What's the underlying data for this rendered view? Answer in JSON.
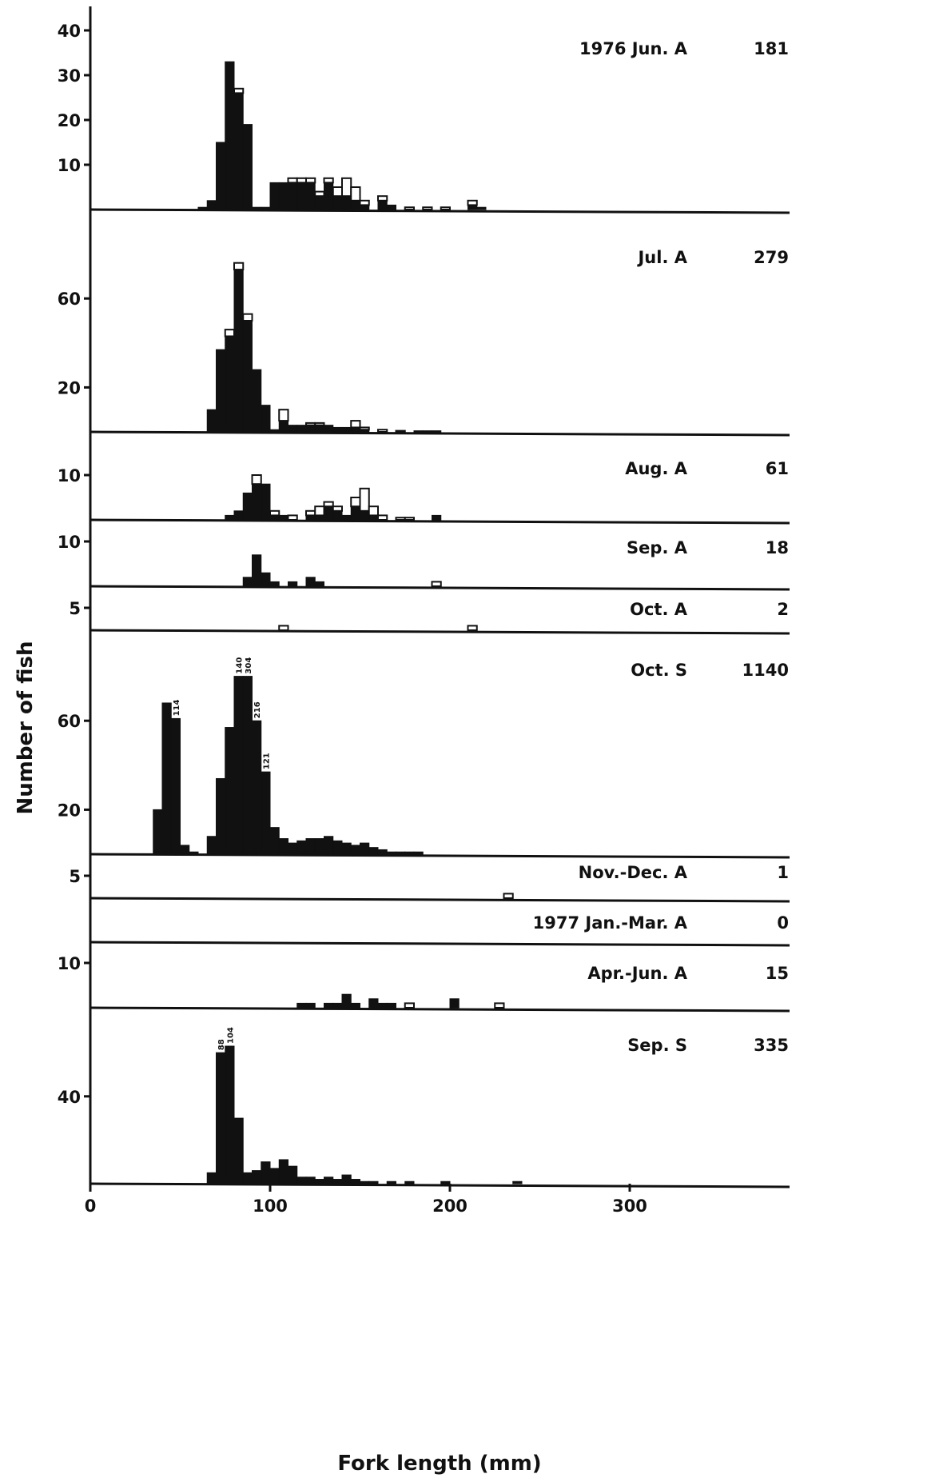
{
  "chart_data": {
    "type": "bar",
    "description_kind": "stacked length-frequency histograms",
    "xlabel": "Fork length (mm)",
    "ylabel": "Number of fish",
    "xlim": [
      0,
      390
    ],
    "xticks": [
      0,
      100,
      200,
      300
    ],
    "bin_width_mm": 5,
    "colors": {
      "filled": "#111111",
      "open": "#ffffff",
      "axis": "#111111"
    },
    "panels": [
      {
        "label": "1976 Jun. A",
        "count": "181",
        "yticks": [
          10,
          20,
          30,
          40
        ],
        "bins": [
          {
            "x": 60,
            "filled": 0.5,
            "total": 0.5
          },
          {
            "x": 65,
            "filled": 2,
            "total": 2
          },
          {
            "x": 70,
            "filled": 15,
            "total": 15
          },
          {
            "x": 75,
            "filled": 33,
            "total": 33
          },
          {
            "x": 80,
            "filled": 26,
            "total": 27
          },
          {
            "x": 85,
            "filled": 19,
            "total": 19
          },
          {
            "x": 90,
            "filled": 0.5,
            "total": 0.5
          },
          {
            "x": 95,
            "filled": 0.5,
            "total": 0.5
          },
          {
            "x": 100,
            "filled": 6,
            "total": 6
          },
          {
            "x": 105,
            "filled": 6,
            "total": 6
          },
          {
            "x": 110,
            "filled": 6,
            "total": 7
          },
          {
            "x": 115,
            "filled": 6,
            "total": 7
          },
          {
            "x": 120,
            "filled": 6,
            "total": 7
          },
          {
            "x": 125,
            "filled": 3,
            "total": 4
          },
          {
            "x": 130,
            "filled": 6,
            "total": 7
          },
          {
            "x": 135,
            "filled": 3,
            "total": 5
          },
          {
            "x": 140,
            "filled": 3,
            "total": 7
          },
          {
            "x": 145,
            "filled": 2,
            "total": 5
          },
          {
            "x": 150,
            "filled": 1,
            "total": 2
          },
          {
            "x": 155,
            "filled": 0,
            "total": 0
          },
          {
            "x": 160,
            "filled": 2,
            "total": 3
          },
          {
            "x": 165,
            "filled": 1,
            "total": 1
          },
          {
            "x": 175,
            "filled": 0,
            "total": 0.5
          },
          {
            "x": 185,
            "filled": 0,
            "total": 0.5
          },
          {
            "x": 195,
            "filled": 0,
            "total": 0.5
          },
          {
            "x": 210,
            "filled": 1,
            "total": 2
          },
          {
            "x": 215,
            "filled": 0.5,
            "total": 0.5
          }
        ]
      },
      {
        "label": "Jul. A",
        "count": "279",
        "yticks": [
          20,
          60
        ],
        "bins": [
          {
            "x": 65,
            "filled": 10,
            "total": 10
          },
          {
            "x": 70,
            "filled": 37,
            "total": 37
          },
          {
            "x": 75,
            "filled": 43,
            "total": 46
          },
          {
            "x": 80,
            "filled": 73,
            "total": 76
          },
          {
            "x": 85,
            "filled": 50,
            "total": 53
          },
          {
            "x": 90,
            "filled": 28,
            "total": 28
          },
          {
            "x": 95,
            "filled": 12,
            "total": 12
          },
          {
            "x": 100,
            "filled": 1,
            "total": 1
          },
          {
            "x": 105,
            "filled": 5,
            "total": 10
          },
          {
            "x": 110,
            "filled": 3,
            "total": 3
          },
          {
            "x": 115,
            "filled": 3,
            "total": 3
          },
          {
            "x": 120,
            "filled": 3,
            "total": 4
          },
          {
            "x": 125,
            "filled": 3,
            "total": 4
          },
          {
            "x": 130,
            "filled": 3,
            "total": 3
          },
          {
            "x": 135,
            "filled": 2,
            "total": 2
          },
          {
            "x": 140,
            "filled": 2,
            "total": 2
          },
          {
            "x": 145,
            "filled": 2,
            "total": 5
          },
          {
            "x": 150,
            "filled": 1,
            "total": 2
          },
          {
            "x": 155,
            "filled": 0,
            "total": 0
          },
          {
            "x": 160,
            "filled": 0,
            "total": 1
          },
          {
            "x": 170,
            "filled": 0,
            "total": 0.5
          },
          {
            "x": 180,
            "filled": 0.5,
            "total": 0.5
          },
          {
            "x": 185,
            "filled": 0.5,
            "total": 0.5
          },
          {
            "x": 190,
            "filled": 0.5,
            "total": 0.5
          }
        ]
      },
      {
        "label": "Aug. A",
        "count": "61",
        "yticks": [
          10
        ],
        "bins": [
          {
            "x": 75,
            "filled": 1,
            "total": 1
          },
          {
            "x": 80,
            "filled": 2,
            "total": 2
          },
          {
            "x": 85,
            "filled": 6,
            "total": 6
          },
          {
            "x": 90,
            "filled": 8,
            "total": 10
          },
          {
            "x": 95,
            "filled": 8,
            "total": 8
          },
          {
            "x": 100,
            "filled": 1,
            "total": 2
          },
          {
            "x": 105,
            "filled": 1,
            "total": 1
          },
          {
            "x": 110,
            "filled": 0,
            "total": 1
          },
          {
            "x": 115,
            "filled": 0,
            "total": 0
          },
          {
            "x": 120,
            "filled": 1,
            "total": 2
          },
          {
            "x": 125,
            "filled": 1,
            "total": 3
          },
          {
            "x": 130,
            "filled": 3,
            "total": 4
          },
          {
            "x": 135,
            "filled": 2,
            "total": 3
          },
          {
            "x": 140,
            "filled": 1,
            "total": 1
          },
          {
            "x": 145,
            "filled": 3,
            "total": 5
          },
          {
            "x": 150,
            "filled": 2,
            "total": 7
          },
          {
            "x": 155,
            "filled": 1,
            "total": 3
          },
          {
            "x": 160,
            "filled": 0,
            "total": 1
          },
          {
            "x": 170,
            "filled": 0,
            "total": 0.5
          },
          {
            "x": 175,
            "filled": 0,
            "total": 0.5
          },
          {
            "x": 190,
            "filled": 1,
            "total": 1
          }
        ]
      },
      {
        "label": "Sep. A",
        "count": "18",
        "yticks": [
          10
        ],
        "bins": [
          {
            "x": 85,
            "filled": 2,
            "total": 2
          },
          {
            "x": 90,
            "filled": 7,
            "total": 7
          },
          {
            "x": 95,
            "filled": 3,
            "total": 3
          },
          {
            "x": 100,
            "filled": 1,
            "total": 1
          },
          {
            "x": 110,
            "filled": 1,
            "total": 1
          },
          {
            "x": 120,
            "filled": 2,
            "total": 2
          },
          {
            "x": 125,
            "filled": 1,
            "total": 1
          },
          {
            "x": 190,
            "filled": 0,
            "total": 1
          }
        ]
      },
      {
        "label": "Oct. A",
        "count": "2",
        "yticks": [
          5
        ],
        "bins": [
          {
            "x": 105,
            "filled": 0,
            "total": 1
          },
          {
            "x": 210,
            "filled": 0,
            "total": 1
          }
        ]
      },
      {
        "label": "Oct. S",
        "count": "1140",
        "yticks": [
          20,
          60
        ],
        "bins": [
          {
            "x": 35,
            "filled": 20,
            "total": 20
          },
          {
            "x": 40,
            "filled": 68,
            "total": 68
          },
          {
            "x": 45,
            "filled": 61,
            "total": 61
          },
          {
            "x": 50,
            "filled": 4,
            "total": 4
          },
          {
            "x": 55,
            "filled": 1,
            "total": 1
          },
          {
            "x": 65,
            "filled": 8,
            "total": 8
          },
          {
            "x": 70,
            "filled": 34,
            "total": 34
          },
          {
            "x": 75,
            "filled": 57,
            "total": 57
          },
          {
            "x": 80,
            "filled": 80,
            "total": 80
          },
          {
            "x": 85,
            "filled": 80,
            "total": 80
          },
          {
            "x": 90,
            "filled": 60,
            "total": 60
          },
          {
            "x": 95,
            "filled": 37,
            "total": 37
          },
          {
            "x": 100,
            "filled": 12,
            "total": 12
          },
          {
            "x": 105,
            "filled": 7,
            "total": 7
          },
          {
            "x": 110,
            "filled": 5,
            "total": 5
          },
          {
            "x": 115,
            "filled": 6,
            "total": 6
          },
          {
            "x": 120,
            "filled": 7,
            "total": 7
          },
          {
            "x": 125,
            "filled": 7,
            "total": 7
          },
          {
            "x": 130,
            "filled": 8,
            "total": 8
          },
          {
            "x": 135,
            "filled": 6,
            "total": 6
          },
          {
            "x": 140,
            "filled": 5,
            "total": 5
          },
          {
            "x": 145,
            "filled": 4,
            "total": 4
          },
          {
            "x": 150,
            "filled": 5,
            "total": 5
          },
          {
            "x": 155,
            "filled": 3,
            "total": 3
          },
          {
            "x": 160,
            "filled": 2,
            "total": 2
          },
          {
            "x": 165,
            "filled": 1,
            "total": 1
          },
          {
            "x": 170,
            "filled": 1,
            "total": 1
          },
          {
            "x": 175,
            "filled": 1,
            "total": 1
          },
          {
            "x": 180,
            "filled": 1,
            "total": 1
          }
        ],
        "data_labels": [
          {
            "x": 45,
            "text": "114"
          },
          {
            "x": 80,
            "text": "140"
          },
          {
            "x": 85,
            "text": "304"
          },
          {
            "x": 90,
            "text": "216"
          },
          {
            "x": 95,
            "text": "121"
          }
        ]
      },
      {
        "label": "Nov.-Dec. A",
        "count": "1",
        "yticks": [
          5
        ],
        "bins": [
          {
            "x": 230,
            "filled": 0,
            "total": 1
          }
        ]
      },
      {
        "label": "1977 Jan.-Mar. A",
        "count": "0",
        "yticks": [],
        "bins": []
      },
      {
        "label": "Apr.-Jun. A",
        "count": "15",
        "yticks": [
          10
        ],
        "bins": [
          {
            "x": 115,
            "filled": 1,
            "total": 1
          },
          {
            "x": 120,
            "filled": 1,
            "total": 1
          },
          {
            "x": 125,
            "filled": 0,
            "total": 0
          },
          {
            "x": 130,
            "filled": 1,
            "total": 1
          },
          {
            "x": 135,
            "filled": 1,
            "total": 1
          },
          {
            "x": 140,
            "filled": 3,
            "total": 3
          },
          {
            "x": 145,
            "filled": 1,
            "total": 1
          },
          {
            "x": 150,
            "filled": 0,
            "total": 0
          },
          {
            "x": 155,
            "filled": 2,
            "total": 2
          },
          {
            "x": 160,
            "filled": 1,
            "total": 1
          },
          {
            "x": 165,
            "filled": 1,
            "total": 1
          },
          {
            "x": 175,
            "filled": 0,
            "total": 1
          },
          {
            "x": 200,
            "filled": 2,
            "total": 2
          },
          {
            "x": 225,
            "filled": 0,
            "total": 1
          }
        ]
      },
      {
        "label": "Sep. S",
        "count": "335",
        "yticks": [
          40
        ],
        "bins": [
          {
            "x": 65,
            "filled": 5,
            "total": 5
          },
          {
            "x": 70,
            "filled": 60,
            "total": 60
          },
          {
            "x": 75,
            "filled": 63,
            "total": 63
          },
          {
            "x": 80,
            "filled": 30,
            "total": 30
          },
          {
            "x": 85,
            "filled": 5,
            "total": 5
          },
          {
            "x": 90,
            "filled": 6,
            "total": 6
          },
          {
            "x": 95,
            "filled": 10,
            "total": 10
          },
          {
            "x": 100,
            "filled": 7,
            "total": 7
          },
          {
            "x": 105,
            "filled": 11,
            "total": 11
          },
          {
            "x": 110,
            "filled": 8,
            "total": 8
          },
          {
            "x": 115,
            "filled": 3,
            "total": 3
          },
          {
            "x": 120,
            "filled": 3,
            "total": 3
          },
          {
            "x": 125,
            "filled": 2,
            "total": 2
          },
          {
            "x": 130,
            "filled": 3,
            "total": 3
          },
          {
            "x": 135,
            "filled": 2,
            "total": 2
          },
          {
            "x": 140,
            "filled": 4,
            "total": 4
          },
          {
            "x": 145,
            "filled": 2,
            "total": 2
          },
          {
            "x": 150,
            "filled": 1,
            "total": 1
          },
          {
            "x": 155,
            "filled": 1,
            "total": 1
          },
          {
            "x": 165,
            "filled": 1,
            "total": 1
          },
          {
            "x": 175,
            "filled": 1,
            "total": 1
          },
          {
            "x": 195,
            "filled": 1,
            "total": 1
          },
          {
            "x": 235,
            "filled": 1,
            "total": 1
          }
        ],
        "data_labels": [
          {
            "x": 70,
            "text": "88"
          },
          {
            "x": 75,
            "text": "104"
          }
        ]
      }
    ]
  }
}
